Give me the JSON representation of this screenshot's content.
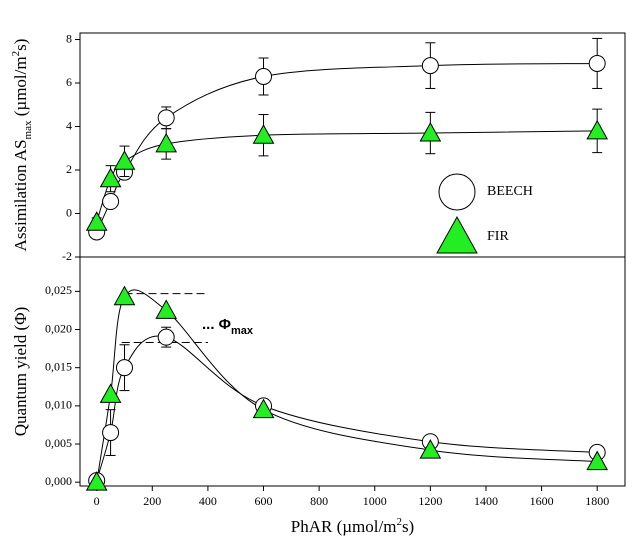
{
  "chart_data": [
    {
      "type": "scatter",
      "ylabel": [
        {
          "text": "Assimilation AS"
        },
        {
          "text": "max",
          "shift": "sub"
        },
        {
          "text": " (µmol/m"
        },
        {
          "text": "2",
          "shift": "super"
        },
        {
          "text": "s)"
        }
      ],
      "x": [
        0,
        50,
        100,
        250,
        600,
        1200,
        1800
      ],
      "xlim": [
        -60,
        1900
      ],
      "ylim": [
        -2,
        8.3
      ],
      "yticks": [
        -2,
        0,
        2,
        4,
        6,
        8
      ],
      "legend": "lower right",
      "series": [
        {
          "name": "BEECH",
          "marker": "circle",
          "color": "#ffffff",
          "values": [
            -0.85,
            0.55,
            1.9,
            4.4,
            6.3,
            6.8,
            6.9
          ],
          "errors": [
            0.2,
            0.2,
            0.3,
            0.5,
            0.85,
            1.05,
            1.15
          ]
        },
        {
          "name": "FIR",
          "marker": "triangle",
          "color": "#22ee22",
          "values": [
            -0.4,
            1.6,
            2.4,
            3.2,
            3.6,
            3.7,
            3.8
          ],
          "errors": [
            0.2,
            0.6,
            0.7,
            0.7,
            0.95,
            0.95,
            1.0
          ]
        }
      ]
    },
    {
      "type": "scatter",
      "ylabel": [
        {
          "text": "Quantum yield (Φ)"
        }
      ],
      "xlabel": [
        {
          "text": "PhAR (µmol/m"
        },
        {
          "text": "2",
          "shift": "super"
        },
        {
          "text": "s)"
        }
      ],
      "x": [
        0,
        50,
        100,
        250,
        600,
        1200,
        1800
      ],
      "xlim": [
        -60,
        1900
      ],
      "xticks": [
        0,
        200,
        400,
        600,
        800,
        1000,
        1200,
        1400,
        1600,
        1800
      ],
      "ylim": [
        -0.0005,
        0.0295
      ],
      "yticks": [
        {
          "value": 0,
          "label": "0,000"
        },
        {
          "value": 0.005,
          "label": "0,005"
        },
        {
          "value": 0.01,
          "label": "0,010"
        },
        {
          "value": 0.015,
          "label": "0,015"
        },
        {
          "value": 0.02,
          "label": "0,020"
        },
        {
          "value": 0.025,
          "label": "0,025"
        }
      ],
      "reference_lines": [
        {
          "value": 0.0247,
          "x": [
            100,
            400
          ]
        },
        {
          "value": 0.0183,
          "x": [
            90,
            400
          ]
        }
      ],
      "annotation": [
        {
          "text": "... Φ"
        },
        {
          "text": "max",
          "shift": "sub"
        }
      ],
      "series": [
        {
          "marker": "circle",
          "color": "#ffffff",
          "values": [
            0.0002,
            0.0065,
            0.015,
            0.019,
            0.01,
            0.0053,
            0.0039
          ],
          "errors": [
            0.0004,
            0.003,
            0.003,
            0.0013,
            0.0006,
            0.0006,
            0.0006
          ]
        },
        {
          "marker": "triangle",
          "color": "#22ee22",
          "values": [
            0.0,
            0.0115,
            0.0243,
            0.0225,
            0.0095,
            0.0042,
            0.0027
          ],
          "errors": [
            0,
            0,
            0,
            0,
            0,
            0,
            0
          ]
        }
      ]
    }
  ]
}
